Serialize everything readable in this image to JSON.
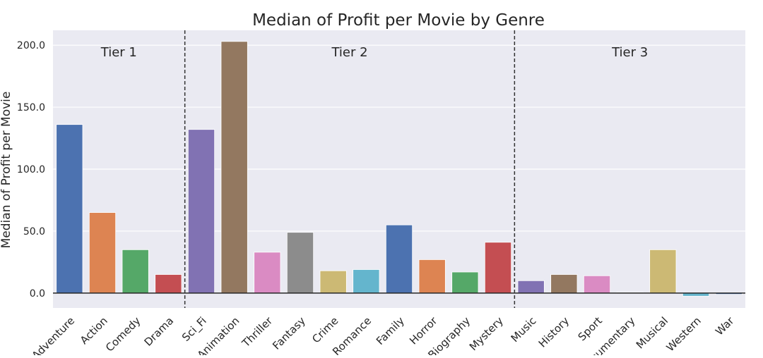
{
  "chart_data": {
    "type": "bar",
    "title": "Median of Profit per Movie by Genre",
    "xlabel": "",
    "ylabel": "Median of Profit per Movie",
    "ylim": [
      -12,
      212
    ],
    "yticks": [
      0,
      50,
      100,
      150,
      200
    ],
    "ytick_labels": [
      "0.0",
      "50.0",
      "100.0",
      "150.0",
      "200.0"
    ],
    "grid": true,
    "zero_line": true,
    "categories": [
      "Adventure",
      "Action",
      "Comedy",
      "Drama",
      "Sci_Fi",
      "Animation",
      "Thriller",
      "Fantasy",
      "Crime",
      "Romance",
      "Family",
      "Horror",
      "Biography",
      "Mystery",
      "Music",
      "History",
      "Sport",
      "Documentary",
      "Musical",
      "Western",
      "War"
    ],
    "values": [
      136,
      65,
      35,
      15,
      132,
      203,
      33,
      49,
      18,
      19,
      55,
      27,
      17,
      41,
      10,
      15,
      14,
      0.6,
      35,
      -2.5,
      -1
    ],
    "colors": [
      "#4c72b0",
      "#dd8452",
      "#55a868",
      "#c44e52",
      "#8172b3",
      "#937860",
      "#da8bc3",
      "#8c8c8c",
      "#ccb974",
      "#64b5cd",
      "#4c72b0",
      "#dd8452",
      "#55a868",
      "#c44e52",
      "#8172b3",
      "#937860",
      "#da8bc3",
      "#8c8c8c",
      "#ccb974",
      "#64b5cd",
      "#4c72b0"
    ],
    "tiers": [
      {
        "label": "Tier 1",
        "start": 0,
        "end": 3
      },
      {
        "label": "Tier 2",
        "start": 4,
        "end": 13
      },
      {
        "label": "Tier 3",
        "start": 14,
        "end": 20
      }
    ],
    "background": "#eaeaf2"
  }
}
